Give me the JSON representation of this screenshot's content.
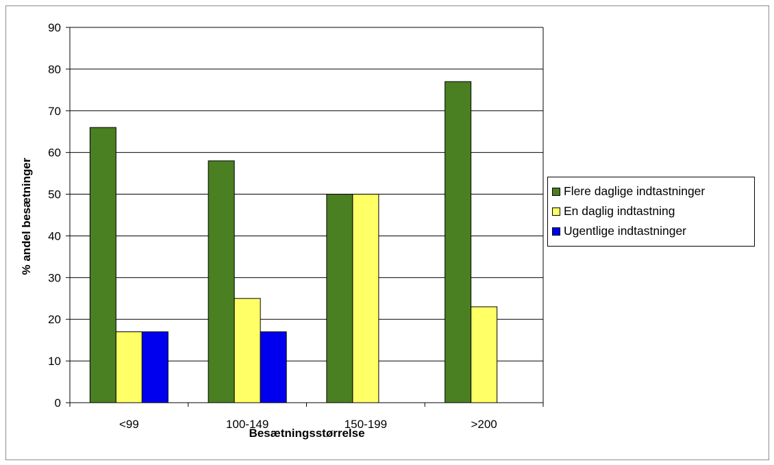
{
  "chart_data": {
    "type": "bar",
    "title": "",
    "xlabel": "Besætningsstørrelse",
    "ylabel": "% andel besætninger",
    "categories": [
      "<99",
      "100-149",
      "150-199",
      ">200"
    ],
    "series": [
      {
        "name": "Flere daglige indtastninger",
        "color": "#4a7f22",
        "values": [
          66,
          58,
          50,
          77
        ]
      },
      {
        "name": "En daglig indtastning",
        "color": "#ffff66",
        "values": [
          17,
          25,
          50,
          23
        ]
      },
      {
        "name": "Ugentlige indtastninger",
        "color": "#0000ee",
        "values": [
          17,
          17,
          0,
          0
        ]
      }
    ],
    "ylim": [
      0,
      90
    ],
    "yticks": [
      0,
      10,
      20,
      30,
      40,
      50,
      60,
      70,
      80,
      90
    ],
    "grid": true,
    "legend": "right"
  }
}
